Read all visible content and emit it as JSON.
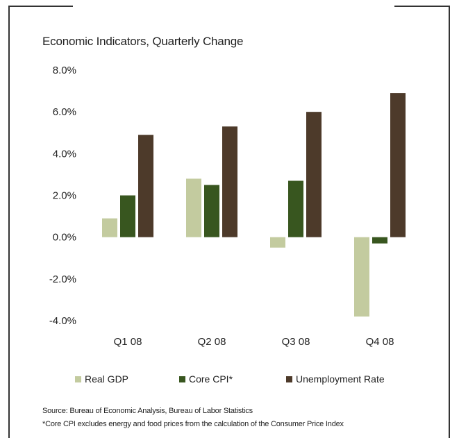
{
  "chart_data": {
    "type": "bar",
    "title": "Economic Indicators, Quarterly Change",
    "categories": [
      "Q1 08",
      "Q2 08",
      "Q3 08",
      "Q4 08"
    ],
    "series": [
      {
        "name": "Real GDP",
        "values": [
          0.9,
          2.8,
          -0.5,
          -3.8
        ],
        "color": "#c3cb9f"
      },
      {
        "name": "Core CPI*",
        "values": [
          2.0,
          2.5,
          2.7,
          -0.3
        ],
        "color": "#38561f"
      },
      {
        "name": "Unemployment Rate",
        "values": [
          4.9,
          5.3,
          6.0,
          6.9
        ],
        "color": "#4d3a2a"
      }
    ],
    "ylim": [
      -4.0,
      8.0
    ],
    "yticks": [
      "8.0%",
      "6.0%",
      "4.0%",
      "2.0%",
      "0.0%",
      "-2.0%",
      "-4.0%"
    ],
    "ytick_values": [
      8,
      6,
      4,
      2,
      0,
      -2,
      -4
    ],
    "grid": false,
    "legend_position": "bottom"
  },
  "footnotes": {
    "source": "Source: Bureau of Economic Analysis, Bureau of Labor Statistics",
    "note": "*Core CPI excludes energy and food prices from the calculation of the Consumer Price Index"
  }
}
